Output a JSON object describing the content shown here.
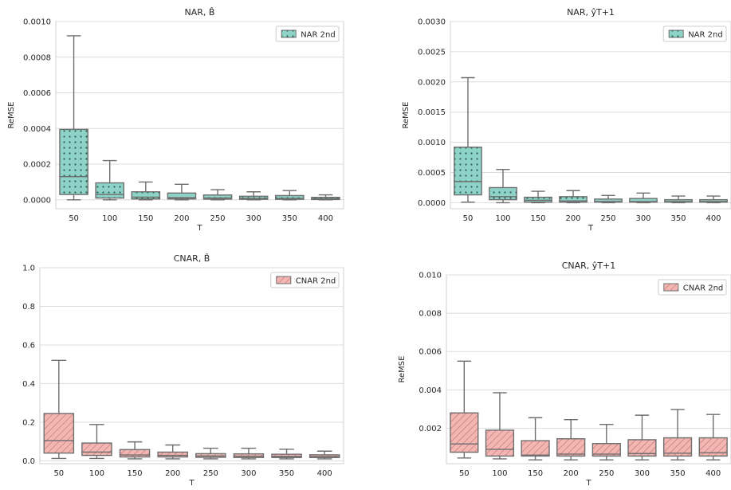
{
  "chart_data": [
    {
      "type": "box",
      "title": "NAR, B̂",
      "xlabel": "T",
      "ylabel": "ReMSE",
      "ylim": [
        -5e-05,
        0.001
      ],
      "yticks": [
        "0.0000",
        "0.0002",
        "0.0004",
        "0.0006",
        "0.0008",
        "0.0010"
      ],
      "categories": [
        "50",
        "100",
        "150",
        "200",
        "250",
        "300",
        "350",
        "400"
      ],
      "grid": true,
      "legend_position": "top-right",
      "series": [
        {
          "name": "NAR 2nd",
          "color": "#8dd3c7",
          "hatch": "dots",
          "boxes": [
            {
              "whislo": 0.0,
              "q1": 3e-05,
              "med": 0.00013,
              "q3": 0.000395,
              "whishi": 0.00092
            },
            {
              "whislo": 0.0,
              "q1": 1e-05,
              "med": 3e-05,
              "q3": 9.5e-05,
              "whishi": 0.00022
            },
            {
              "whislo": 0.0,
              "q1": 5e-06,
              "med": 1.5e-05,
              "q3": 4.5e-05,
              "whishi": 0.0001
            },
            {
              "whislo": 0.0,
              "q1": 5e-06,
              "med": 1.2e-05,
              "q3": 3.8e-05,
              "whishi": 8.7e-05
            },
            {
              "whislo": 0.0,
              "q1": 4e-06,
              "med": 1e-05,
              "q3": 2.7e-05,
              "whishi": 5.7e-05
            },
            {
              "whislo": 0.0,
              "q1": 3e-06,
              "med": 8e-06,
              "q3": 2e-05,
              "whishi": 4.5e-05
            },
            {
              "whislo": 0.0,
              "q1": 3e-06,
              "med": 8e-06,
              "q3": 2.4e-05,
              "whishi": 5.2e-05
            },
            {
              "whislo": 0.0,
              "q1": 2e-06,
              "med": 6e-06,
              "q3": 1.4e-05,
              "whishi": 2.8e-05
            }
          ]
        }
      ]
    },
    {
      "type": "box",
      "title": "NAR, ŷT+1",
      "xlabel": "T",
      "ylabel": "ReMSE",
      "ylim": [
        -0.0001,
        0.003
      ],
      "yticks": [
        "0.0000",
        "0.0005",
        "0.0010",
        "0.0015",
        "0.0020",
        "0.0025",
        "0.0030"
      ],
      "categories": [
        "50",
        "100",
        "150",
        "200",
        "250",
        "300",
        "350",
        "400"
      ],
      "grid": true,
      "legend_position": "top-right",
      "series": [
        {
          "name": "NAR 2nd",
          "color": "#8dd3c7",
          "hatch": "dots",
          "boxes": [
            {
              "whislo": 1e-05,
              "q1": 0.00013,
              "med": 0.00035,
              "q3": 0.00092,
              "whishi": 0.00207
            },
            {
              "whislo": 0.0,
              "q1": 5e-05,
              "med": 0.0001,
              "q3": 0.00025,
              "whishi": 0.00055
            },
            {
              "whislo": 0.0,
              "q1": 1e-05,
              "med": 4e-05,
              "q3": 9e-05,
              "whishi": 0.00019
            },
            {
              "whislo": 0.0,
              "q1": 1e-05,
              "med": 3e-05,
              "q3": 0.0001,
              "whishi": 0.0002
            },
            {
              "whislo": 0.0,
              "q1": 1e-05,
              "med": 2e-05,
              "q3": 6e-05,
              "whishi": 0.00012
            },
            {
              "whislo": 0.0,
              "q1": 1e-05,
              "med": 2e-05,
              "q3": 7e-05,
              "whishi": 0.00016
            },
            {
              "whislo": 0.0,
              "q1": 1e-05,
              "med": 2e-05,
              "q3": 5e-05,
              "whishi": 0.00011
            },
            {
              "whislo": 0.0,
              "q1": 1e-05,
              "med": 2e-05,
              "q3": 5e-05,
              "whishi": 0.00011
            }
          ]
        }
      ]
    },
    {
      "type": "box",
      "title": "CNAR, B̂",
      "xlabel": "T",
      "ylabel": "ReMSE",
      "ylim": [
        -0.015,
        1.0
      ],
      "yticks": [
        "0.0",
        "0.2",
        "0.4",
        "0.6",
        "0.8",
        "1.0"
      ],
      "categories": [
        "50",
        "100",
        "150",
        "200",
        "250",
        "300",
        "350",
        "400"
      ],
      "grid": true,
      "legend_position": "top-right",
      "series": [
        {
          "name": "CNAR 2nd",
          "color": "#f4b6b2",
          "hatch": "diagonal",
          "boxes": [
            {
              "whislo": 0.012,
              "q1": 0.04,
              "med": 0.105,
              "q3": 0.245,
              "whishi": 0.52
            },
            {
              "whislo": 0.012,
              "q1": 0.028,
              "med": 0.045,
              "q3": 0.092,
              "whishi": 0.188
            },
            {
              "whislo": 0.01,
              "q1": 0.02,
              "med": 0.03,
              "q3": 0.058,
              "whishi": 0.098
            },
            {
              "whislo": 0.01,
              "q1": 0.02,
              "med": 0.028,
              "q3": 0.045,
              "whishi": 0.082
            },
            {
              "whislo": 0.01,
              "q1": 0.018,
              "med": 0.025,
              "q3": 0.037,
              "whishi": 0.065
            },
            {
              "whislo": 0.01,
              "q1": 0.017,
              "med": 0.024,
              "q3": 0.036,
              "whishi": 0.065
            },
            {
              "whislo": 0.01,
              "q1": 0.017,
              "med": 0.023,
              "q3": 0.034,
              "whishi": 0.06
            },
            {
              "whislo": 0.01,
              "q1": 0.017,
              "med": 0.022,
              "q3": 0.031,
              "whishi": 0.05
            }
          ]
        }
      ]
    },
    {
      "type": "box",
      "title": "CNAR, ŷT+1",
      "xlabel": "T",
      "ylabel": "ReMSE",
      "ylim": [
        0.00015,
        0.01
      ],
      "yticks": [
        "0.002",
        "0.004",
        "0.006",
        "0.008",
        "0.010"
      ],
      "categories": [
        "50",
        "100",
        "150",
        "200",
        "250",
        "300",
        "350",
        "400"
      ],
      "grid": true,
      "legend_position": "top-right",
      "series": [
        {
          "name": "CNAR 2nd",
          "color": "#f4b6b2",
          "hatch": "diagonal",
          "boxes": [
            {
              "whislo": 0.00045,
              "q1": 0.00075,
              "med": 0.00118,
              "q3": 0.0028,
              "whishi": 0.0055
            },
            {
              "whislo": 0.0004,
              "q1": 0.00055,
              "med": 0.0009,
              "q3": 0.0019,
              "whishi": 0.00385
            },
            {
              "whislo": 0.00035,
              "q1": 0.00055,
              "med": 0.0006,
              "q3": 0.00135,
              "whishi": 0.00255
            },
            {
              "whislo": 0.00035,
              "q1": 0.00055,
              "med": 0.00065,
              "q3": 0.00145,
              "whishi": 0.00245
            },
            {
              "whislo": 0.00035,
              "q1": 0.00055,
              "med": 0.00065,
              "q3": 0.0012,
              "whishi": 0.0022
            },
            {
              "whislo": 0.00035,
              "q1": 0.00055,
              "med": 0.00068,
              "q3": 0.0014,
              "whishi": 0.00268
            },
            {
              "whislo": 0.00035,
              "q1": 0.00055,
              "med": 0.0007,
              "q3": 0.0015,
              "whishi": 0.00298
            },
            {
              "whislo": 0.00035,
              "q1": 0.00055,
              "med": 0.00072,
              "q3": 0.0015,
              "whishi": 0.00272
            }
          ]
        }
      ]
    }
  ]
}
